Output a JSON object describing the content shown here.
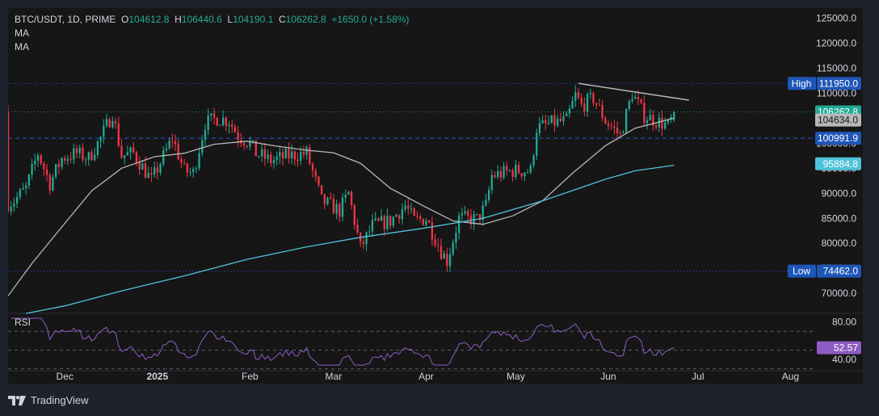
{
  "header": {
    "symbol": "BTC/USDT, 1D, PRIME",
    "open_label": "O",
    "open_value": "104612.8",
    "high_label": "H",
    "high_value": "106440.6",
    "low_label": "L",
    "low_value": "104190.1",
    "close_label": "C",
    "close_value": "106262.8",
    "change": "+1650.0 (+1.58%)"
  },
  "indicators": [
    "MA",
    "MA"
  ],
  "rsi_label": "RSI",
  "brand": "TradingView",
  "colors": {
    "background": "#161616",
    "up": "#22ab94",
    "down": "#f23645",
    "ma_short": "#b8b8b8",
    "ma_long": "#4fc3d9",
    "rsi": "#8e5cc5",
    "high_line": "#2962ff",
    "label_blue": "#1e56b8"
  },
  "chart_data": [
    {
      "type": "candlestick",
      "symbol": "BTC/USDT",
      "interval": "1D",
      "ylim": [
        66000,
        127000
      ],
      "y_ticks": [
        70000,
        75000,
        80000,
        85000,
        90000,
        95000,
        100000,
        105000,
        110000,
        115000,
        120000,
        125000
      ],
      "y_tick_labels": [
        "70000.0",
        "75000.0",
        "80000.0",
        "85000.0",
        "90000.0",
        "95000.0",
        "100000.0",
        "105000.0",
        "110000.0",
        "115000.0",
        "120000.0",
        "125000.0"
      ],
      "x_labels": [
        {
          "label": "Dec",
          "date": "2024-12-01"
        },
        {
          "label": "2025",
          "date": "2025-01-01"
        },
        {
          "label": "Feb",
          "date": "2025-02-01"
        },
        {
          "label": "Mar",
          "date": "2025-03-01"
        },
        {
          "label": "Apr",
          "date": "2025-04-01"
        },
        {
          "label": "May",
          "date": "2025-05-01"
        },
        {
          "label": "Jun",
          "date": "2025-06-01"
        },
        {
          "label": "Jul",
          "date": "2025-07-01"
        },
        {
          "label": "Aug",
          "date": "2025-08-01"
        }
      ],
      "x_range": [
        "2024-11-12",
        "2025-08-09"
      ],
      "candle_range": [
        "2024-11-12",
        "2025-06-23"
      ],
      "close_anchors": [
        [
          "2024-11-12",
          88000
        ],
        [
          "2024-11-14",
          88500
        ],
        [
          "2024-11-18",
          91000
        ],
        [
          "2024-11-22",
          98000
        ],
        [
          "2024-11-26",
          92000
        ],
        [
          "2024-11-30",
          97000
        ],
        [
          "2024-12-05",
          98000
        ],
        [
          "2024-12-09",
          97000
        ],
        [
          "2024-12-13",
          101000
        ],
        [
          "2024-12-17",
          106000
        ],
        [
          "2024-12-20",
          97500
        ],
        [
          "2024-12-24",
          98000
        ],
        [
          "2024-12-30",
          92500
        ],
        [
          "2025-01-06",
          101000
        ],
        [
          "2025-01-10",
          94500
        ],
        [
          "2025-01-13",
          94000
        ],
        [
          "2025-01-17",
          104000
        ],
        [
          "2025-01-21",
          105000
        ],
        [
          "2025-01-25",
          104500
        ],
        [
          "2025-01-28",
          101500
        ],
        [
          "2025-02-01",
          100000
        ],
        [
          "2025-02-03",
          98000
        ],
        [
          "2025-02-08",
          96500
        ],
        [
          "2025-02-14",
          97500
        ],
        [
          "2025-02-20",
          98000
        ],
        [
          "2025-02-25",
          88500
        ],
        [
          "2025-03-03",
          86500
        ],
        [
          "2025-03-06",
          90000
        ],
        [
          "2025-03-10",
          79000
        ],
        [
          "2025-03-14",
          83500
        ],
        [
          "2025-03-20",
          84500
        ],
        [
          "2025-03-25",
          87500
        ],
        [
          "2025-03-28",
          84500
        ],
        [
          "2025-04-01",
          85000
        ],
        [
          "2025-04-06",
          78500
        ],
        [
          "2025-04-08",
          76500
        ],
        [
          "2025-04-12",
          85000
        ],
        [
          "2025-04-18",
          84800
        ],
        [
          "2025-04-21",
          87500
        ],
        [
          "2025-04-23",
          93500
        ],
        [
          "2025-04-30",
          94500
        ],
        [
          "2025-05-06",
          94500
        ],
        [
          "2025-05-08",
          103000
        ],
        [
          "2025-05-13",
          104000
        ],
        [
          "2025-05-18",
          104500
        ],
        [
          "2025-05-21",
          109500
        ],
        [
          "2025-05-23",
          107500
        ],
        [
          "2025-05-27",
          109000
        ],
        [
          "2025-05-31",
          104500
        ],
        [
          "2025-06-05",
          101500
        ],
        [
          "2025-06-09",
          110000
        ],
        [
          "2025-06-13",
          105500
        ],
        [
          "2025-06-17",
          104500
        ],
        [
          "2025-06-21",
          103500
        ],
        [
          "2025-06-22",
          104600
        ],
        [
          "2025-06-23",
          106262.8
        ]
      ],
      "last_candle": {
        "open": 104612.8,
        "high": 106440.6,
        "low": 104190.1,
        "close": 106262.8
      },
      "moving_averages": [
        {
          "name": "MA",
          "color": "#b8b8b8",
          "points": [
            [
              "2024-11-12",
              69500
            ],
            [
              "2024-11-20",
              76000
            ],
            [
              "2024-12-01",
              84000
            ],
            [
              "2024-12-10",
              90500
            ],
            [
              "2024-12-20",
              95000
            ],
            [
              "2024-12-31",
              97300
            ],
            [
              "2025-01-10",
              98000
            ],
            [
              "2025-01-20",
              99800
            ],
            [
              "2025-01-31",
              100400
            ],
            [
              "2025-02-10",
              99400
            ],
            [
              "2025-02-20",
              98600
            ],
            [
              "2025-03-01",
              98100
            ],
            [
              "2025-03-10",
              96000
            ],
            [
              "2025-03-20",
              91000
            ],
            [
              "2025-03-31",
              87500
            ],
            [
              "2025-04-10",
              84500
            ],
            [
              "2025-04-20",
              83800
            ],
            [
              "2025-04-30",
              85500
            ],
            [
              "2025-05-10",
              88500
            ],
            [
              "2025-05-20",
              94000
            ],
            [
              "2025-05-31",
              99500
            ],
            [
              "2025-06-10",
              103000
            ],
            [
              "2025-06-23",
              105000
            ]
          ]
        },
        {
          "name": "MA",
          "color": "#4fc3d9",
          "points": [
            [
              "2024-11-18",
              66000
            ],
            [
              "2024-12-01",
              67500
            ],
            [
              "2024-12-20",
              70500
            ],
            [
              "2025-01-10",
              73500
            ],
            [
              "2025-01-31",
              76800
            ],
            [
              "2025-02-20",
              79300
            ],
            [
              "2025-03-10",
              81200
            ],
            [
              "2025-03-31",
              83000
            ],
            [
              "2025-04-20",
              85000
            ],
            [
              "2025-05-10",
              88500
            ],
            [
              "2025-05-31",
              92800
            ],
            [
              "2025-06-10",
              94500
            ],
            [
              "2025-06-23",
              95600
            ]
          ]
        }
      ],
      "trendline": {
        "points": [
          [
            "2025-05-22",
            111950
          ],
          [
            "2025-06-28",
            108600
          ]
        ],
        "color": "#b8b8b8"
      },
      "horizontal_lines": [
        {
          "value": 111950.0,
          "label": "High",
          "value_label": "111950.0",
          "style": "dotted"
        },
        {
          "value": 106262.8,
          "style": "dotted",
          "color": "#22ab94"
        },
        {
          "value": 100991.9,
          "style": "dashed",
          "color": "#2962ff"
        },
        {
          "value": 74462.0,
          "label": "Low",
          "value_label": "74462.0",
          "style": "dotted"
        }
      ],
      "price_labels": [
        {
          "value": 106262.8,
          "text": "106262.8",
          "color": "#22ab94"
        },
        {
          "value": 104634.0,
          "text": "104634.0",
          "color": "#b8b8b8"
        },
        {
          "value": 100991.9,
          "text": "100991.9",
          "color": "#1e56b8"
        },
        {
          "value": 95884.8,
          "text": "95884.8",
          "color": "#4fc3d9"
        }
      ]
    },
    {
      "type": "line",
      "name": "RSI",
      "ylim": [
        34,
        84
      ],
      "y_ticks": [
        40,
        80
      ],
      "y_tick_labels": [
        "40.00",
        "80.00"
      ],
      "levels": [
        70,
        50,
        30
      ],
      "current": 52.57,
      "current_label": "52.57",
      "series_mode": "derived_from_closes",
      "period": 14
    }
  ]
}
